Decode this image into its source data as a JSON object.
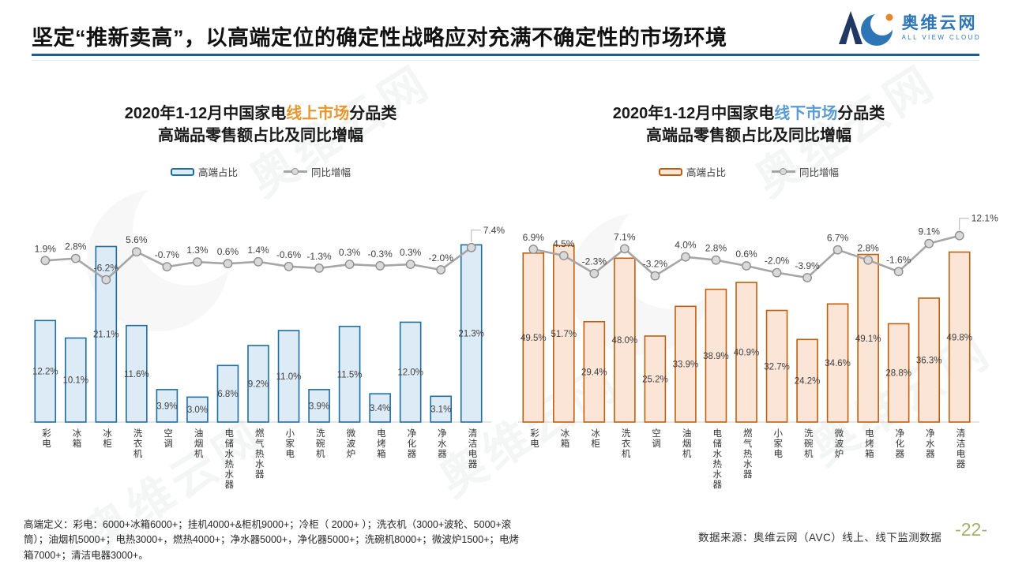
{
  "header": {
    "title": "坚定“推新卖高”，以高端定位的确定性战略应对充满不确定性的市场环境"
  },
  "logo": {
    "abbr": "AVC",
    "brand": "奥维云网",
    "tagline": "ALL VIEW CLOUD",
    "brand_color": "#2e75b6",
    "dot_color": "#e8862c",
    "dark_color": "#1f3864"
  },
  "page": {
    "watermark": "奥维云网"
  },
  "footer": {
    "definition": "高端定义：彩电：6000+冰箱6000+；挂机4000+&柜机9000+；冷柜（ 2000+ ）；洗衣机（3000+波轮、5000+滚筒）；油烟机5000+；电热3000+，燃热4000+；净水器5000+，净化器5000+；洗碗机8000+；微波炉1500+；电烤箱7000+；清洁电器3000+。",
    "source": "数据来源：奥维云网（AVC）线上、线下监测数据",
    "page_number": "-22-"
  },
  "colors": {
    "title_rule": "#1f5f8e",
    "line_series": "#a6a6a6",
    "marker_fill": "#d9d9d9",
    "label_text": "#404040",
    "page_number": "#9cb46a"
  },
  "chart_data": [
    {
      "type": "bar",
      "title": {
        "pre": "2020年1-12月中国家电",
        "highlight": "线上市场",
        "post": "分品类",
        "line2": "高端品零售额占比及同比增幅"
      },
      "highlight_color": "#e8962e",
      "legend_position": "top",
      "grid": false,
      "bar_axis_max": 25.6,
      "line_axis_note": "secondary axis, no ticks shown",
      "categories": [
        "彩电",
        "冰箱",
        "冰柜",
        "洗衣机",
        "空调",
        "油烟机",
        "电储水热水器",
        "燃气热水器",
        "小家电",
        "洗碗机",
        "微波炉",
        "电烤箱",
        "净化器",
        "净水器",
        "清洁电器"
      ],
      "series": [
        {
          "name": "高端占比",
          "type": "bar",
          "fill": "#ddebf7",
          "stroke": "#1f6ea3",
          "values": [
            12.2,
            10.1,
            21.1,
            11.6,
            3.9,
            3.0,
            6.8,
            9.2,
            11.0,
            3.9,
            11.5,
            3.4,
            12.0,
            3.1,
            21.3
          ]
        },
        {
          "name": "同比增幅",
          "type": "line",
          "stroke": "#a6a6a6",
          "values": [
            1.9,
            2.8,
            -6.2,
            5.6,
            -0.7,
            1.3,
            0.6,
            1.4,
            -0.6,
            -1.3,
            0.3,
            -0.3,
            0.3,
            -2.0,
            7.4
          ]
        }
      ]
    },
    {
      "type": "bar",
      "title": {
        "pre": "2020年1-12月中国家电",
        "highlight": "线下市场",
        "post": "分品类",
        "line2": "高端品零售额占比及同比增幅"
      },
      "highlight_color": "#5b9bd5",
      "legend_position": "top",
      "grid": false,
      "bar_axis_max": 62.4,
      "line_axis_note": "secondary axis, no ticks shown",
      "categories": [
        "彩电",
        "冰箱",
        "冰柜",
        "洗衣机",
        "空调",
        "油烟机",
        "电储水热水器",
        "燃气热水器",
        "小家电",
        "洗碗机",
        "微波炉",
        "电烤箱",
        "净化器",
        "净水器",
        "清洁电器"
      ],
      "series": [
        {
          "name": "高端占比",
          "type": "bar",
          "fill": "#fbe5d6",
          "stroke": "#c05f10",
          "values": [
            49.5,
            51.7,
            29.4,
            48.0,
            25.2,
            33.9,
            38.9,
            40.9,
            32.7,
            24.2,
            34.6,
            49.1,
            28.8,
            36.3,
            49.8
          ]
        },
        {
          "name": "同比增幅",
          "type": "line",
          "stroke": "#a6a6a6",
          "values": [
            6.9,
            4.5,
            -2.3,
            7.1,
            -3.2,
            4.0,
            2.8,
            0.6,
            -2.0,
            -3.9,
            6.7,
            2.8,
            -1.6,
            9.1,
            12.1
          ]
        }
      ]
    }
  ]
}
